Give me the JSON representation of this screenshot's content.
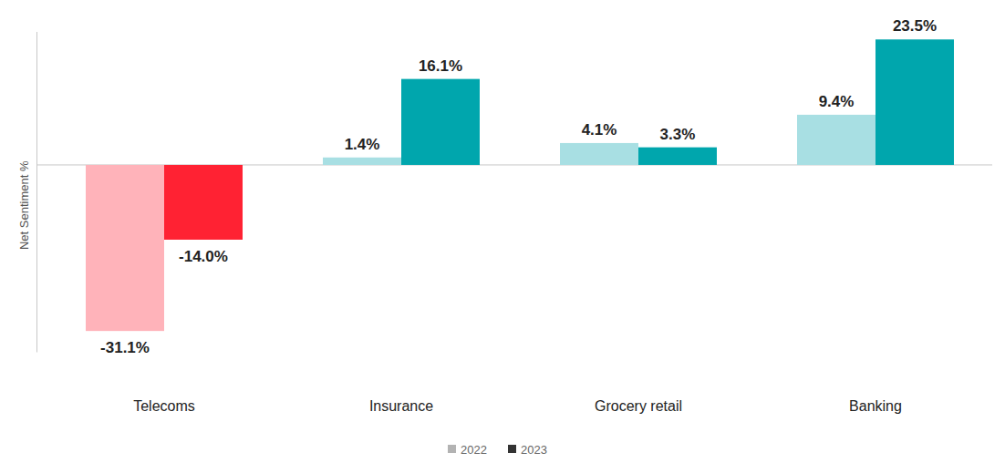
{
  "chart_data": {
    "type": "bar",
    "y_label": "Net Sentiment %",
    "categories": [
      "Telecoms",
      "Insurance",
      "Grocery retail",
      "Banking"
    ],
    "series": [
      {
        "name": "2022",
        "color": "#b3b3b3",
        "colors": [
          "#ffb3ba",
          "#a8dfe3",
          "#a8dfe3",
          "#a8dfe3"
        ],
        "values": [
          -31.1,
          1.4,
          4.1,
          9.4
        ],
        "value_labels": [
          "-31.1%",
          "1.4%",
          "4.1%",
          "9.4%"
        ]
      },
      {
        "name": "2023",
        "color": "#333333",
        "colors": [
          "#ff2233",
          "#00a6ad",
          "#00a6ad",
          "#00a6ad"
        ],
        "values": [
          -14.0,
          16.1,
          3.3,
          23.5
        ],
        "value_labels": [
          "-14.0%",
          "16.1%",
          "3.3%",
          "23.5%"
        ]
      }
    ],
    "ylim": [
      -35,
      25
    ],
    "yticks": [
      0
    ],
    "grid": true,
    "data_labels": true,
    "tick_labels": "x",
    "legend": "bottom"
  }
}
